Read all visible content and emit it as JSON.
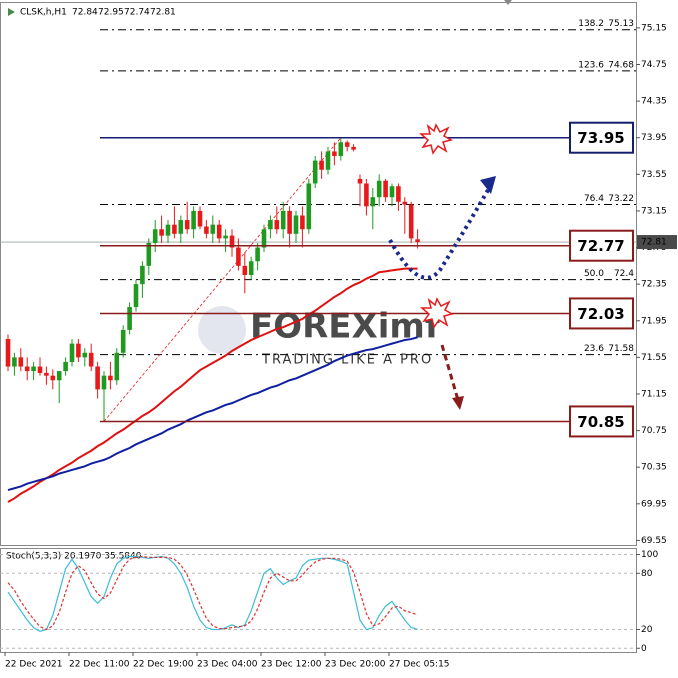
{
  "chart_data": [
    {
      "type": "candlestick",
      "title": "CLSK,h,H1",
      "categories": [
        "22 Dec 2021",
        null,
        null,
        null,
        null,
        null,
        null,
        null,
        null,
        null,
        "22 Dec 11:00",
        null,
        null,
        null,
        null,
        null,
        null,
        null,
        null,
        null,
        "22 Dec 19:00",
        null,
        null,
        null,
        null,
        null,
        null,
        null,
        null,
        null,
        "23 Dec 04:00",
        null,
        null,
        null,
        null,
        null,
        null,
        null,
        null,
        null,
        "23 Dec 12:00",
        null,
        null,
        null,
        null,
        null,
        null,
        null,
        null,
        null,
        "23 Dec 20:00",
        null,
        null,
        null,
        null,
        null,
        null,
        null,
        null,
        null,
        "27 Dec 05:15",
        null,
        null,
        null,
        null
      ],
      "open": [
        71.75,
        71.45,
        71.55,
        71.45,
        71.4,
        71.45,
        71.38,
        71.35,
        71.3,
        71.4,
        71.5,
        71.7,
        71.55,
        71.6,
        71.45,
        71.2,
        71.35,
        71.3,
        71.6,
        71.85,
        72.1,
        72.35,
        72.55,
        72.8,
        72.95,
        72.88,
        73.0,
        72.9,
        73.05,
        72.95,
        73.15,
        72.98,
        72.9,
        73.0,
        72.85,
        72.88,
        72.75,
        72.55,
        72.45,
        72.6,
        72.75,
        72.95,
        73.05,
        72.95,
        73.15,
        72.9,
        73.1,
        72.95,
        73.45,
        73.7,
        73.6,
        73.8,
        73.75,
        73.9,
        73.85,
        73.5,
        73.45,
        73.2,
        73.3,
        73.48,
        73.3,
        73.42,
        73.25,
        73.22,
        72.84
      ],
      "high": [
        71.8,
        71.6,
        71.65,
        71.55,
        71.5,
        71.55,
        71.45,
        71.42,
        71.4,
        71.55,
        71.75,
        71.75,
        71.65,
        71.7,
        71.5,
        71.4,
        71.5,
        71.65,
        71.9,
        72.15,
        72.4,
        72.6,
        72.85,
        73.05,
        73.1,
        73.05,
        73.2,
        73.1,
        73.25,
        73.2,
        73.2,
        73.05,
        73.1,
        73.05,
        72.95,
        72.95,
        72.85,
        72.7,
        72.65,
        72.8,
        73.0,
        73.1,
        73.2,
        73.25,
        73.2,
        73.15,
        73.2,
        73.5,
        73.75,
        73.8,
        73.85,
        73.9,
        73.95,
        73.92,
        73.88,
        73.55,
        73.5,
        73.4,
        73.55,
        73.5,
        73.45,
        73.45,
        73.3,
        73.25,
        72.95
      ],
      "low": [
        71.4,
        71.35,
        71.4,
        71.3,
        71.3,
        71.35,
        71.25,
        71.2,
        71.05,
        71.35,
        71.45,
        71.5,
        71.45,
        71.4,
        71.1,
        70.85,
        71.2,
        71.25,
        71.55,
        71.8,
        72.05,
        72.2,
        72.45,
        72.7,
        72.8,
        72.8,
        72.85,
        72.8,
        72.9,
        72.85,
        72.95,
        72.85,
        72.8,
        72.8,
        72.7,
        72.65,
        72.5,
        72.25,
        72.4,
        72.5,
        72.7,
        72.85,
        72.9,
        72.85,
        72.75,
        72.8,
        72.75,
        72.9,
        73.4,
        73.5,
        73.55,
        73.65,
        73.7,
        73.8,
        73.8,
        73.2,
        73.1,
        72.95,
        73.2,
        73.25,
        73.2,
        73.15,
        72.9,
        72.8,
        72.74
      ],
      "close": [
        71.45,
        71.55,
        71.45,
        71.4,
        71.45,
        71.38,
        71.35,
        71.3,
        71.4,
        71.5,
        71.7,
        71.55,
        71.6,
        71.45,
        71.2,
        71.35,
        71.3,
        71.6,
        71.85,
        72.1,
        72.35,
        72.55,
        72.8,
        72.95,
        72.88,
        73.0,
        72.9,
        73.05,
        72.95,
        73.15,
        72.98,
        72.9,
        73.0,
        72.85,
        72.88,
        72.75,
        72.55,
        72.45,
        72.6,
        72.75,
        72.95,
        73.05,
        72.95,
        73.15,
        72.9,
        73.1,
        72.95,
        73.45,
        73.7,
        73.6,
        73.8,
        73.75,
        73.9,
        73.85,
        73.82,
        73.45,
        73.2,
        73.3,
        73.48,
        73.3,
        73.42,
        73.25,
        73.22,
        72.85,
        72.81
      ],
      "up_color": "#1f9a1f",
      "down_color": "#e8191b",
      "overlays": [
        {
          "color": "#e01010",
          "values": [
            69.97,
            70.01,
            70.06,
            70.1,
            70.14,
            70.19,
            70.23,
            70.27,
            70.32,
            70.36,
            70.4,
            70.45,
            70.49,
            70.53,
            70.58,
            70.62,
            70.67,
            70.72,
            70.76,
            70.81,
            70.86,
            70.91,
            70.95,
            71.0,
            71.06,
            71.12,
            71.18,
            71.23,
            71.29,
            71.35,
            71.41,
            71.45,
            71.49,
            71.53,
            71.57,
            71.62,
            71.66,
            71.7,
            71.74,
            71.77,
            71.8,
            71.83,
            71.86,
            71.88,
            71.91,
            71.94,
            71.97,
            72.02,
            72.06,
            72.11,
            72.16,
            72.21,
            72.25,
            72.3,
            72.34,
            72.37,
            72.41,
            72.44,
            72.48,
            72.49,
            72.5,
            72.51,
            72.52,
            72.52,
            72.52
          ]
        },
        {
          "color": "#1020a0",
          "values": [
            70.1,
            70.12,
            70.14,
            70.17,
            70.19,
            70.21,
            70.23,
            70.25,
            70.28,
            70.3,
            70.32,
            70.34,
            70.36,
            70.39,
            70.41,
            70.43,
            70.46,
            70.5,
            70.53,
            70.56,
            70.6,
            70.63,
            70.66,
            70.69,
            70.72,
            70.76,
            70.79,
            70.82,
            70.86,
            70.89,
            70.92,
            70.95,
            70.97,
            71.0,
            71.03,
            71.05,
            71.08,
            71.11,
            71.14,
            71.16,
            71.19,
            71.22,
            71.24,
            71.27,
            71.3,
            71.32,
            71.35,
            71.38,
            71.41,
            71.44,
            71.47,
            71.51,
            71.54,
            71.57,
            71.59,
            71.61,
            71.63,
            71.64,
            71.66,
            71.68,
            71.7,
            71.72,
            71.74,
            71.75,
            71.77
          ]
        }
      ],
      "ylim": [
        69.5,
        75.4
      ],
      "yticks": [
        75.15,
        74.75,
        74.35,
        73.95,
        73.55,
        73.15,
        72.75,
        72.35,
        71.95,
        71.55,
        71.15,
        70.75,
        70.35,
        69.95,
        69.55
      ],
      "fib_levels": [
        {
          "label": "138.2",
          "price": 75.13
        },
        {
          "label": "123.6",
          "price": 74.68
        },
        {
          "label": "76.4",
          "price": 73.22
        },
        {
          "label": "50.0",
          "price": 72.4
        },
        {
          "label": "23.6",
          "price": 71.58
        }
      ],
      "key_levels": [
        {
          "value": 73.95,
          "color": "#141e6e"
        },
        {
          "value": 72.77,
          "color": "#8a1c1c"
        },
        {
          "value": 72.03,
          "color": "#8a1c1c"
        },
        {
          "value": 70.85,
          "color": "#8a1c1c"
        }
      ],
      "current_price": 72.81,
      "watermark": "FOREXimf",
      "watermark_tagline": "TRADING LIKE A PRO"
    },
    {
      "type": "line",
      "title": "Stoch(5,3,3) 20.1970 35.5840",
      "series": [
        {
          "color": "#3cbcd8",
          "dashed": false,
          "values": [
            60,
            50,
            40,
            30,
            22,
            18,
            20,
            35,
            60,
            85,
            95,
            85,
            70,
            55,
            48,
            55,
            75,
            90,
            96,
            98,
            98,
            97,
            96,
            97,
            98,
            96,
            90,
            80,
            65,
            45,
            30,
            22,
            20,
            20,
            22,
            25,
            22,
            25,
            40,
            60,
            80,
            85,
            75,
            68,
            72,
            75,
            88,
            94,
            95,
            96,
            96,
            95,
            93,
            90,
            60,
            30,
            20,
            22,
            35,
            45,
            50,
            40,
            30,
            22,
            20.197
          ]
        },
        {
          "color": "#e03030",
          "dashed": true,
          "values": [
            70,
            62,
            50,
            40,
            31,
            23,
            20,
            24,
            38,
            60,
            80,
            88,
            83,
            70,
            58,
            53,
            59,
            73,
            87,
            95,
            97,
            98,
            97,
            97,
            97,
            97,
            95,
            89,
            78,
            63,
            47,
            32,
            24,
            21,
            21,
            22,
            23,
            24,
            29,
            42,
            60,
            75,
            80,
            76,
            72,
            72,
            78,
            86,
            92,
            95,
            96,
            96,
            95,
            93,
            81,
            60,
            37,
            24,
            26,
            34,
            43,
            45,
            40,
            38,
            35.584
          ]
        }
      ],
      "ylim": [
        -4,
        107
      ],
      "yticks": [
        100,
        80,
        20,
        0
      ],
      "grid": true
    }
  ]
}
